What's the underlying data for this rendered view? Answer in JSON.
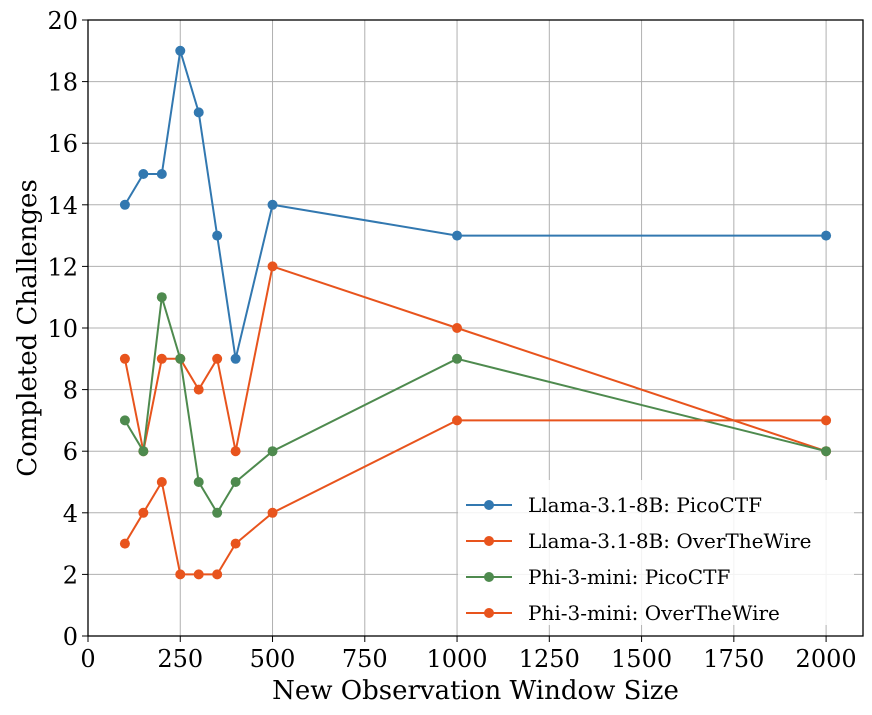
{
  "chart_data": {
    "type": "line",
    "title": "",
    "xlabel": "New Observation Window Size",
    "ylabel": "Completed Challenges",
    "xlim": [
      0,
      2100
    ],
    "ylim": [
      0,
      20
    ],
    "xticks": [
      0,
      250,
      500,
      750,
      1000,
      1250,
      1500,
      1750,
      2000
    ],
    "yticks": [
      0,
      2,
      4,
      6,
      8,
      10,
      12,
      14,
      16,
      18,
      20
    ],
    "grid": true,
    "legend_position": "lower-right",
    "x": [
      100,
      150,
      200,
      250,
      300,
      350,
      400,
      500,
      1000,
      2000
    ],
    "series": [
      {
        "name": "Llama-3.1-8B: PicoCTF",
        "color": "#3278b0",
        "values": [
          14,
          15,
          15,
          19,
          17,
          13,
          9,
          14,
          13,
          13
        ]
      },
      {
        "name": "Llama-3.1-8B: OverTheWire",
        "color": "#e8541d",
        "values": [
          9,
          6,
          9,
          9,
          8,
          9,
          6,
          12,
          10,
          6
        ]
      },
      {
        "name": "Phi-3-mini: PicoCTF",
        "color": "#4e8a4e",
        "values": [
          7,
          6,
          11,
          9,
          5,
          4,
          5,
          6,
          9,
          6
        ]
      },
      {
        "name": "Phi-3-mini: OverTheWire",
        "color": "#e8541d",
        "values": [
          3,
          4,
          5,
          2,
          2,
          2,
          3,
          4,
          7,
          7
        ]
      }
    ]
  }
}
